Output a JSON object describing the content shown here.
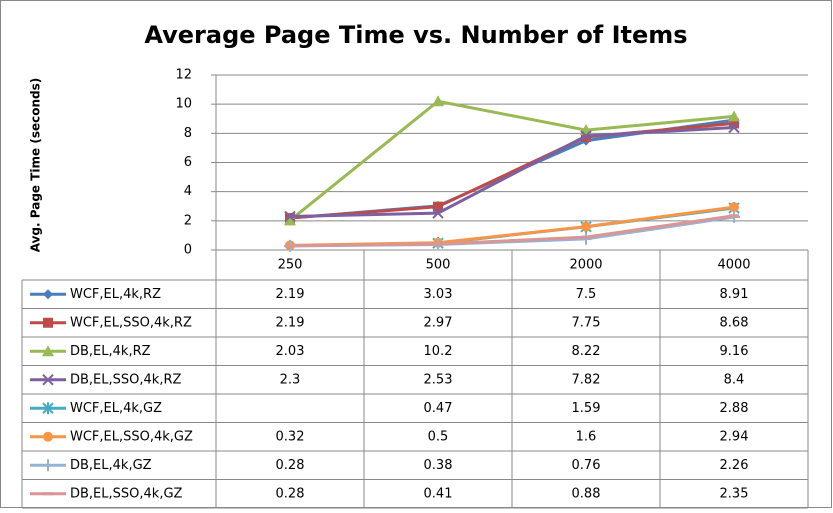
{
  "chart_data": {
    "type": "line",
    "title": "Average Page Time vs. Number of Items",
    "y_label": "Avg. Page Time (seconds)",
    "categories": [
      "250",
      "500",
      "2000",
      "4000"
    ],
    "ylim": [
      0,
      12
    ],
    "yticks": [
      0,
      2,
      4,
      6,
      8,
      10,
      12
    ],
    "grid": true,
    "data_table": true,
    "series": [
      {
        "name": "WCF,EL,4k,RZ",
        "color": "#4a7ebb",
        "marker": "diamond",
        "values": [
          2.19,
          3.03,
          7.5,
          8.91
        ]
      },
      {
        "name": "WCF,EL,SSO,4k,RZ",
        "color": "#be4b48",
        "marker": "square",
        "values": [
          2.19,
          2.97,
          7.75,
          8.68
        ]
      },
      {
        "name": "DB,EL,4k,RZ",
        "color": "#98b954",
        "marker": "triangle",
        "values": [
          2.03,
          10.2,
          8.22,
          9.16
        ]
      },
      {
        "name": "DB,EL,SSO,4k,RZ",
        "color": "#7d60a0",
        "marker": "x",
        "values": [
          2.3,
          2.53,
          7.82,
          8.4
        ]
      },
      {
        "name": "WCF,EL,4k,GZ",
        "color": "#46aac5",
        "marker": "star",
        "values": [
          null,
          0.47,
          1.59,
          2.88
        ]
      },
      {
        "name": "WCF,EL,SSO,4k,GZ",
        "color": "#f79646",
        "marker": "circle",
        "values": [
          0.32,
          0.5,
          1.6,
          2.94
        ]
      },
      {
        "name": "DB,EL,4k,GZ",
        "color": "#95b3d7",
        "marker": "plus",
        "values": [
          0.28,
          0.38,
          0.76,
          2.26
        ]
      },
      {
        "name": "DB,EL,SSO,4k,GZ",
        "color": "#d99694",
        "marker": "dash",
        "values": [
          0.28,
          0.41,
          0.88,
          2.35
        ]
      }
    ]
  }
}
